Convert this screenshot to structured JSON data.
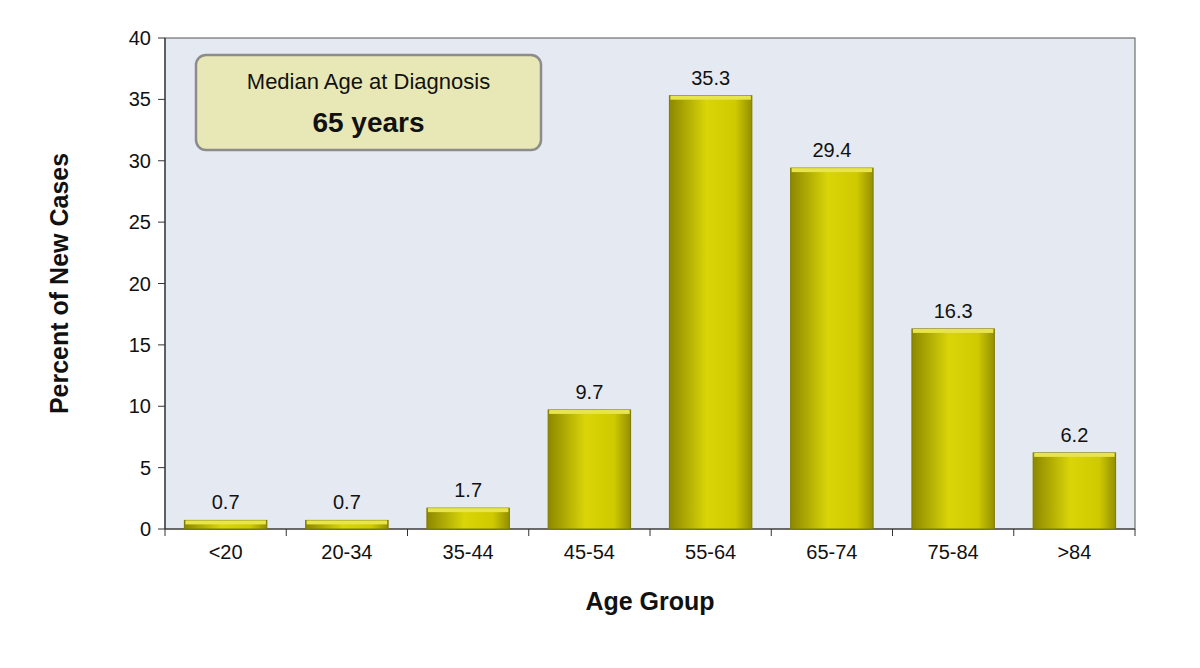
{
  "chart_data": {
    "type": "bar",
    "x_label": "Age Group",
    "y_label": "Percent of New Cases",
    "annotations": [
      "Median Age at Diagnosis",
      "65 years"
    ],
    "categories": [
      "<20",
      "20-34",
      "35-44",
      "45-54",
      "55-64",
      "65-74",
      "75-84",
      ">84"
    ],
    "values": [
      0.7,
      0.7,
      1.7,
      9.7,
      35.3,
      29.4,
      16.3,
      6.2
    ],
    "color": "#cfca00",
    "ylim": [
      0,
      40
    ],
    "yticks": [
      0,
      5,
      10,
      15,
      20,
      25,
      30,
      35,
      40
    ],
    "grid": false,
    "data_labels": true
  }
}
